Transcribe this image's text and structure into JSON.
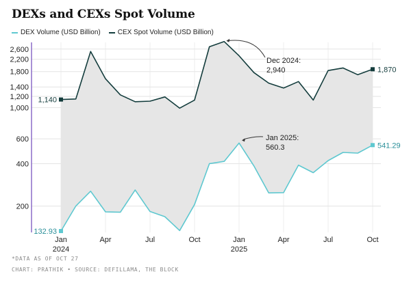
{
  "title": "DEXs and CEXs Spot Volume",
  "legend": [
    {
      "label": "DEX Volume (USD Billion)",
      "color": "#5ec8d0"
    },
    {
      "label": "CEX Spot Volume (USD Billion)",
      "color": "#133c3c"
    }
  ],
  "footnotes": {
    "note": "*DATA AS OF OCT 27",
    "credit": "CHART: PRATHIK • SOURCE: DEFILLAMA, THE BLOCK"
  },
  "chart_data": {
    "type": "line",
    "yscale": "log",
    "ylim": [
      130,
      2900
    ],
    "yticks": [
      200,
      400,
      600,
      1000,
      1200,
      1400,
      1800,
      2200,
      2600
    ],
    "ytick_labels": [
      "200",
      "400",
      "600",
      "1,000",
      "1,200",
      "1,400",
      "1,800",
      "2,200",
      "2,600"
    ],
    "x": [
      "2024-01",
      "2024-02",
      "2024-03",
      "2024-04",
      "2024-05",
      "2024-06",
      "2024-07",
      "2024-08",
      "2024-09",
      "2024-10",
      "2024-11",
      "2024-12",
      "2025-01",
      "2025-02",
      "2025-03",
      "2025-04",
      "2025-05",
      "2025-06",
      "2025-07",
      "2025-08",
      "2025-09",
      "2025-10"
    ],
    "xticks": [
      {
        "index": 0,
        "label": "Jan",
        "sublabel": "2024"
      },
      {
        "index": 3,
        "label": "Apr",
        "sublabel": ""
      },
      {
        "index": 6,
        "label": "Jul",
        "sublabel": ""
      },
      {
        "index": 9,
        "label": "Oct",
        "sublabel": ""
      },
      {
        "index": 12,
        "label": "Jan",
        "sublabel": "2025"
      },
      {
        "index": 15,
        "label": "Apr",
        "sublabel": ""
      },
      {
        "index": 18,
        "label": "Jul",
        "sublabel": ""
      },
      {
        "index": 21,
        "label": "Oct",
        "sublabel": ""
      }
    ],
    "series": [
      {
        "name": "DEX Volume (USD Billion)",
        "color": "#5ec8d0",
        "values": [
          132.93,
          200,
          255,
          182,
          181,
          260,
          183,
          168,
          134,
          205,
          400,
          415,
          560.3,
          385,
          248,
          249,
          390,
          345,
          420,
          480,
          475,
          541.29
        ]
      },
      {
        "name": "CEX Spot Volume (USD Billion)",
        "color": "#133c3c",
        "values": [
          1140,
          1150,
          2500,
          1600,
          1230,
          1100,
          1110,
          1190,
          990,
          1130,
          2700,
          2940,
          2330,
          1770,
          1490,
          1375,
          1530,
          1130,
          1830,
          1910,
          1710,
          1870
        ]
      }
    ],
    "endpoint_labels": [
      {
        "series": 1,
        "index": 0,
        "text": "1,140",
        "side": "left"
      },
      {
        "series": 1,
        "index": 21,
        "text": "1,870",
        "side": "right"
      },
      {
        "series": 0,
        "index": 0,
        "text": "132.93",
        "side": "left"
      },
      {
        "series": 0,
        "index": 21,
        "text": "541.29",
        "side": "right"
      }
    ],
    "annotations": [
      {
        "series": 1,
        "index": 11,
        "line1": "Dec 2024:",
        "line2": "2,940"
      },
      {
        "series": 0,
        "index": 12,
        "line1": "Jan 2025:",
        "line2": "560.3"
      }
    ],
    "grid": true
  }
}
